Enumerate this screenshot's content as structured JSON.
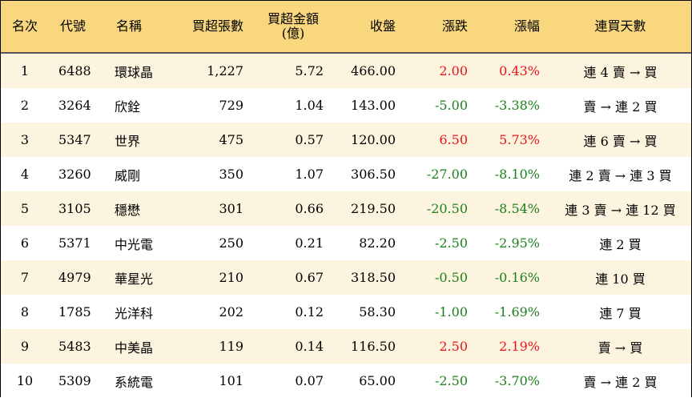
{
  "headers": {
    "rank": "名次",
    "code": "代號",
    "name": "名稱",
    "net_lots": "買超張數",
    "net_amount_line1": "買超金額",
    "net_amount_line2": "(億)",
    "close": "收盤",
    "change": "漲跌",
    "pct": "漲幅",
    "streak": "連買天數"
  },
  "rows": [
    {
      "rank": "1",
      "code": "6488",
      "name": "環球晶",
      "lots": "1,227",
      "amount": "5.72",
      "close": "466.00",
      "change": "2.00",
      "pct": "0.43%",
      "streak": "連 4 賣 → 買",
      "dir": "up"
    },
    {
      "rank": "2",
      "code": "3264",
      "name": "欣銓",
      "lots": "729",
      "amount": "1.04",
      "close": "143.00",
      "change": "-5.00",
      "pct": "-3.38%",
      "streak": "賣 → 連 2 買",
      "dir": "down"
    },
    {
      "rank": "3",
      "code": "5347",
      "name": "世界",
      "lots": "475",
      "amount": "0.57",
      "close": "120.00",
      "change": "6.50",
      "pct": "5.73%",
      "streak": "連 6 賣 → 買",
      "dir": "up"
    },
    {
      "rank": "4",
      "code": "3260",
      "name": "威剛",
      "lots": "350",
      "amount": "1.07",
      "close": "306.50",
      "change": "-27.00",
      "pct": "-8.10%",
      "streak": "連 2 賣 → 連 3 買",
      "dir": "down"
    },
    {
      "rank": "5",
      "code": "3105",
      "name": "穩懋",
      "lots": "301",
      "amount": "0.66",
      "close": "219.50",
      "change": "-20.50",
      "pct": "-8.54%",
      "streak": "連 3 賣 → 連 12 買",
      "dir": "down"
    },
    {
      "rank": "6",
      "code": "5371",
      "name": "中光電",
      "lots": "250",
      "amount": "0.21",
      "close": "82.20",
      "change": "-2.50",
      "pct": "-2.95%",
      "streak": "連 2 買",
      "dir": "down"
    },
    {
      "rank": "7",
      "code": "4979",
      "name": "華星光",
      "lots": "210",
      "amount": "0.67",
      "close": "318.50",
      "change": "-0.50",
      "pct": "-0.16%",
      "streak": "連 10 買",
      "dir": "down"
    },
    {
      "rank": "8",
      "code": "1785",
      "name": "光洋科",
      "lots": "202",
      "amount": "0.12",
      "close": "58.30",
      "change": "-1.00",
      "pct": "-1.69%",
      "streak": "連 7 買",
      "dir": "down"
    },
    {
      "rank": "9",
      "code": "5483",
      "name": "中美晶",
      "lots": "119",
      "amount": "0.14",
      "close": "116.50",
      "change": "2.50",
      "pct": "2.19%",
      "streak": "賣 → 買",
      "dir": "up"
    },
    {
      "rank": "10",
      "code": "5309",
      "name": "系統電",
      "lots": "101",
      "amount": "0.07",
      "close": "65.00",
      "change": "-2.50",
      "pct": "-3.70%",
      "streak": "賣 → 連 2 買",
      "dir": "down"
    }
  ],
  "colors": {
    "header_bg": "#f9d77e",
    "odd_row_bg": "#fdf4df",
    "even_row_bg": "#ffffff",
    "up": "#e8141b",
    "down": "#1b7f1b"
  }
}
